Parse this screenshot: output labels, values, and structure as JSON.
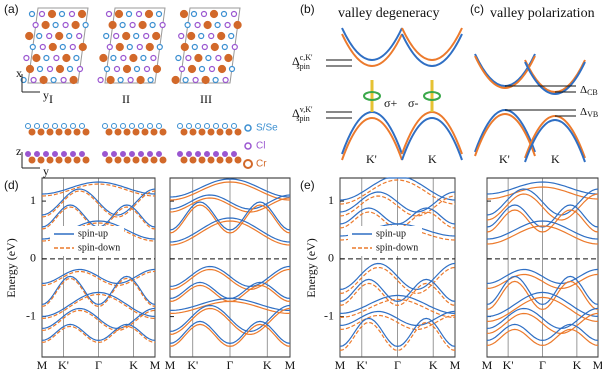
{
  "panel_a": {
    "label": "(a)",
    "top_axes": [
      "x",
      "y"
    ],
    "phases": [
      "I",
      "II",
      "III"
    ],
    "side_axes": [
      "z",
      "y"
    ],
    "legend": [
      "S/Se",
      "Cl",
      "Cr"
    ]
  },
  "panel_b": {
    "label": "(b)",
    "title": "valley degeneracy",
    "delta_c": {
      "symbol": "Δ",
      "sup": "c,K'",
      "sub": "spin"
    },
    "delta_v": {
      "symbol": "Δ",
      "sup": "v,K'",
      "sub": "spin"
    },
    "sigma_plus": "σ+",
    "sigma_minus": "σ-",
    "valleys": [
      "K'",
      "K"
    ]
  },
  "panel_c": {
    "label": "(c)",
    "title": "valley polarization",
    "delta_cb": {
      "symbol": "Δ",
      "sub": "CB"
    },
    "delta_vb": {
      "symbol": "Δ",
      "sub": "VB"
    },
    "valleys": [
      "K'",
      "K"
    ]
  },
  "panel_d": {
    "label": "(d)",
    "ylabel": "Energy (eV)",
    "ylim": [
      -1.7,
      1.4
    ],
    "yticks": [
      1,
      0,
      -1
    ],
    "kpoints": [
      "M",
      "K'",
      "Γ",
      "K",
      "M"
    ],
    "legend": [
      "spin-up",
      "spin-down"
    ]
  },
  "panel_e": {
    "label": "(e)",
    "ylabel": "Energy (eV)",
    "ylim": [
      -1.7,
      1.4
    ],
    "yticks": [
      1,
      0,
      -1
    ],
    "kpoints": [
      "M",
      "K'",
      "Γ",
      "K",
      "M"
    ],
    "legend": [
      "spin-up",
      "spin-down"
    ]
  }
}
